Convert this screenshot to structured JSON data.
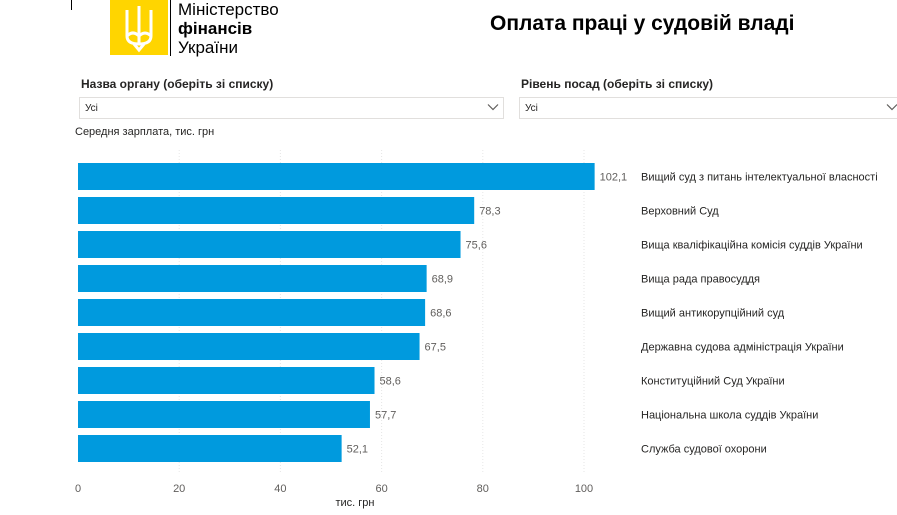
{
  "header": {
    "ministry_line1": "Міністерство",
    "ministry_line2": "фінансів",
    "ministry_line3": "України",
    "page_title": "Оплата праці у судовій владі"
  },
  "filters": {
    "organ": {
      "label": "Назва органу (оберіть зі списку)",
      "value": "Усі"
    },
    "level": {
      "label": "Рівень посад (оберіть зі списку)",
      "value": "Усі"
    }
  },
  "colors": {
    "bar": "#009ade",
    "logo": "#ffd500"
  },
  "chart_data": {
    "type": "bar",
    "orientation": "horizontal",
    "title": "Середня зарплата, тис. грн",
    "xlabel": "тис. грн",
    "xlim": [
      0,
      100
    ],
    "xticks": [
      0,
      20,
      40,
      60,
      80,
      100
    ],
    "grid": true,
    "categories": [
      "Вищий суд з питань інтелектуальної власності",
      "Верховний Суд",
      "Вища кваліфікаційна комісія суддів України",
      "Вища рада правосуддя",
      "Вищий антикорупційний суд",
      "Державна судова адміністрація України",
      "Конституційний Суд України",
      "Національна школа суддів України",
      "Служба судової охорони"
    ],
    "values": [
      102.1,
      78.3,
      75.6,
      68.9,
      68.6,
      67.5,
      58.6,
      57.7,
      52.1
    ],
    "value_labels": [
      "102,1",
      "78,3",
      "75,6",
      "68,9",
      "68,6",
      "67,5",
      "58,6",
      "57,7",
      "52,1"
    ]
  }
}
